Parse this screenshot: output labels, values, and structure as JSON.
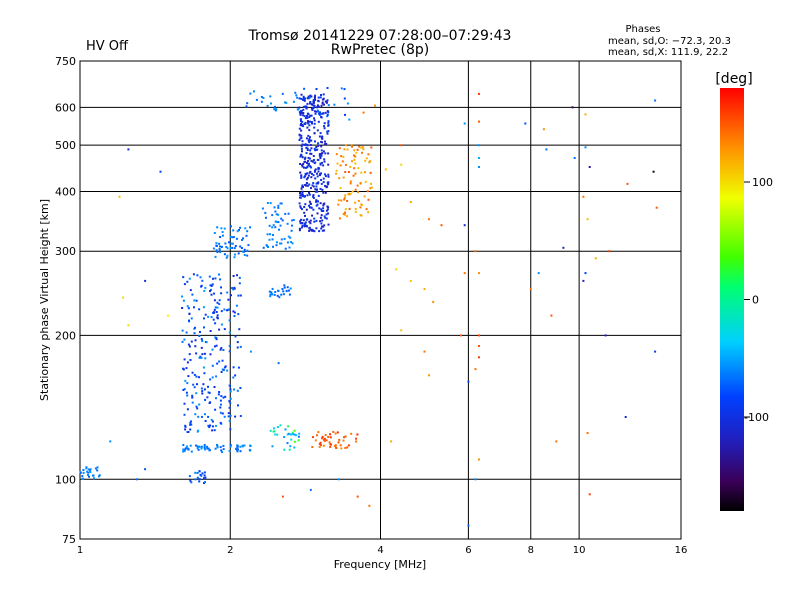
{
  "chart_data": {
    "type": "scatter",
    "title": "Tromsø 20141229 07:28:00–07:29:43",
    "subtitle": "RwPretec (8p)",
    "status_label": "HV Off",
    "status_color": "#cc0000",
    "xlabel": "Frequency [MHz]",
    "ylabel": "Stationary phase Virtual Height [km]",
    "x_scale": "log",
    "y_scale": "log",
    "xlim": [
      1,
      16
    ],
    "ylim": [
      75,
      750
    ],
    "x_ticks": [
      1,
      2,
      4,
      6,
      8,
      10,
      16
    ],
    "y_ticks": [
      75,
      100,
      200,
      300,
      400,
      500,
      600,
      750
    ],
    "grid": true,
    "legend": {
      "title": "Phases",
      "lines": [
        "mean, sd,O: −72.3, 20.3",
        "mean, sd,X: 111.9, 22.2"
      ],
      "placement": "top-right"
    },
    "colorbar": {
      "unit": "[deg]",
      "range": [
        -180,
        180
      ],
      "ticks": [
        100,
        0,
        -100
      ],
      "colormap": "rainbow (black-purple-blue-cyan-green-yellow-orange-red)"
    },
    "clusters": [
      {
        "f": [
          1.0,
          1.1
        ],
        "h": [
          100,
          106
        ],
        "phase": [
          -75,
          -55
        ],
        "n": 25
      },
      {
        "f": [
          1.65,
          1.8
        ],
        "h": [
          98,
          104
        ],
        "phase": [
          -95,
          -60
        ],
        "n": 20
      },
      {
        "f": [
          1.6,
          2.2
        ],
        "h": [
          114,
          118
        ],
        "phase": [
          -80,
          -55
        ],
        "n": 60
      },
      {
        "f": [
          1.6,
          2.1
        ],
        "h": [
          125,
          270
        ],
        "phase": [
          -110,
          -55
        ],
        "n": 260
      },
      {
        "f": [
          1.85,
          2.2
        ],
        "h": [
          290,
          340
        ],
        "phase": [
          -80,
          -55
        ],
        "n": 60
      },
      {
        "f": [
          2.3,
          2.7
        ],
        "h": [
          300,
          380
        ],
        "phase": [
          -75,
          -55
        ],
        "n": 55
      },
      {
        "f": [
          2.4,
          2.65
        ],
        "h": [
          240,
          255
        ],
        "phase": [
          -80,
          -60
        ],
        "n": 25
      },
      {
        "f": [
          2.4,
          2.75
        ],
        "h": [
          115,
          130
        ],
        "phase": [
          -70,
          40
        ],
        "n": 30
      },
      {
        "f": [
          2.9,
          3.6
        ],
        "h": [
          116,
          126
        ],
        "phase": [
          130,
          170
        ],
        "n": 45
      },
      {
        "f": [
          2.75,
          3.15
        ],
        "h": [
          330,
          640
        ],
        "phase": [
          -125,
          -90
        ],
        "n": 420
      },
      {
        "f": [
          3.25,
          3.85
        ],
        "h": [
          350,
          500
        ],
        "phase": [
          110,
          150
        ],
        "n": 90
      },
      {
        "f": [
          2.15,
          2.75
        ],
        "h": [
          590,
          650
        ],
        "phase": [
          -75,
          -55
        ],
        "n": 25
      },
      {
        "f": [
          2.7,
          3.5
        ],
        "h": [
          560,
          660
        ],
        "phase": [
          -95,
          -55
        ],
        "n": 18
      }
    ],
    "extra_points": [
      [
        1.25,
        490,
        -110
      ],
      [
        1.45,
        440,
        -90
      ],
      [
        1.2,
        390,
        110
      ],
      [
        1.35,
        260,
        -100
      ],
      [
        1.22,
        240,
        100
      ],
      [
        1.25,
        210,
        100
      ],
      [
        1.15,
        120,
        -60
      ],
      [
        1.5,
        220,
        90
      ],
      [
        1.35,
        105,
        -80
      ],
      [
        1.3,
        100,
        -70
      ],
      [
        4.1,
        445,
        110
      ],
      [
        4.4,
        455,
        100
      ],
      [
        4.6,
        380,
        120
      ],
      [
        5.0,
        350,
        140
      ],
      [
        5.3,
        340,
        150
      ],
      [
        4.3,
        275,
        100
      ],
      [
        4.6,
        260,
        110
      ],
      [
        4.9,
        250,
        120
      ],
      [
        5.1,
        235,
        130
      ],
      [
        4.4,
        205,
        110
      ],
      [
        4.9,
        185,
        140
      ],
      [
        5.0,
        165,
        130
      ],
      [
        4.2,
        120,
        120
      ],
      [
        3.9,
        605,
        130
      ],
      [
        3.7,
        585,
        140
      ],
      [
        4.4,
        500,
        150
      ],
      [
        5.9,
        555,
        -60
      ],
      [
        5.9,
        340,
        -110
      ],
      [
        6.3,
        640,
        160
      ],
      [
        6.3,
        560,
        150
      ],
      [
        6.3,
        500,
        -60
      ],
      [
        6.3,
        470,
        -50
      ],
      [
        6.3,
        450,
        -60
      ],
      [
        6.2,
        300,
        140
      ],
      [
        6.3,
        270,
        130
      ],
      [
        6.3,
        200,
        160
      ],
      [
        6.3,
        190,
        150
      ],
      [
        6.3,
        180,
        160
      ],
      [
        6.2,
        170,
        140
      ],
      [
        6.3,
        110,
        130
      ],
      [
        6.2,
        100,
        -60
      ],
      [
        5.9,
        270,
        140
      ],
      [
        5.8,
        200,
        150
      ],
      [
        6.0,
        80,
        -70
      ],
      [
        6.0,
        160,
        -80
      ],
      [
        7.8,
        555,
        -80
      ],
      [
        8.5,
        540,
        130
      ],
      [
        8.6,
        490,
        -70
      ],
      [
        8.3,
        270,
        -60
      ],
      [
        8.0,
        250,
        140
      ],
      [
        8.8,
        220,
        150
      ],
      [
        9.0,
        120,
        140
      ],
      [
        9.3,
        305,
        -110
      ],
      [
        9.7,
        600,
        -150
      ],
      [
        9.8,
        470,
        -70
      ],
      [
        10.3,
        580,
        120
      ],
      [
        10.3,
        495,
        -60
      ],
      [
        10.5,
        450,
        -130
      ],
      [
        10.2,
        390,
        140
      ],
      [
        10.4,
        350,
        110
      ],
      [
        10.3,
        270,
        -90
      ],
      [
        10.2,
        260,
        -120
      ],
      [
        10.4,
        125,
        140
      ],
      [
        10.5,
        93,
        160
      ],
      [
        11.5,
        300,
        160
      ],
      [
        11.3,
        200,
        -120
      ],
      [
        12.5,
        415,
        150
      ],
      [
        12.4,
        135,
        -110
      ],
      [
        14.2,
        620,
        -70
      ],
      [
        14.1,
        440,
        -170
      ],
      [
        14.3,
        370,
        150
      ],
      [
        14.2,
        185,
        -90
      ],
      [
        10.8,
        290,
        120
      ],
      [
        2.55,
        92,
        150
      ],
      [
        3.6,
        92,
        150
      ],
      [
        2.9,
        95,
        -70
      ],
      [
        3.3,
        100,
        -60
      ],
      [
        3.8,
        88,
        140
      ],
      [
        2.2,
        185,
        -60
      ],
      [
        2.5,
        175,
        -70
      ]
    ]
  }
}
